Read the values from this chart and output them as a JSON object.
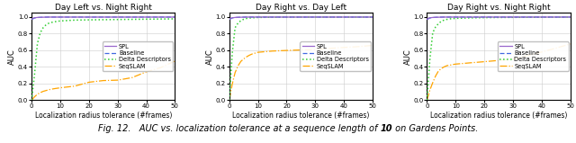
{
  "subplots": [
    {
      "title": "Day Left vs. Night Right",
      "spl": {
        "x": [
          0,
          1,
          2,
          3,
          4,
          5,
          6,
          7,
          8,
          9,
          10,
          15,
          20,
          25,
          30,
          35,
          40,
          45,
          50
        ],
        "y": [
          0.975,
          0.99,
          0.994,
          0.996,
          0.997,
          0.998,
          0.999,
          0.999,
          0.999,
          0.999,
          0.999,
          0.999,
          0.999,
          0.999,
          0.999,
          0.999,
          0.999,
          0.999,
          0.999
        ]
      },
      "baseline": {
        "x": [
          0,
          1,
          2,
          3,
          4,
          5,
          6,
          7,
          8,
          9,
          10,
          15,
          20,
          25,
          30,
          35,
          40,
          45,
          50
        ],
        "y": [
          0.97,
          0.988,
          0.993,
          0.995,
          0.997,
          0.998,
          0.999,
          0.999,
          0.999,
          0.999,
          0.999,
          0.999,
          0.999,
          0.999,
          0.999,
          0.999,
          0.999,
          0.999,
          0.999
        ]
      },
      "delta": {
        "x": [
          0,
          1,
          2,
          3,
          4,
          5,
          6,
          7,
          8,
          9,
          10,
          15,
          20,
          25,
          30,
          35,
          40,
          45,
          50
        ],
        "y": [
          0.0,
          0.31,
          0.68,
          0.81,
          0.87,
          0.905,
          0.925,
          0.935,
          0.942,
          0.948,
          0.952,
          0.962,
          0.965,
          0.967,
          0.969,
          0.971,
          0.973,
          0.975,
          0.977
        ]
      },
      "seqslam": {
        "x": [
          0,
          1,
          2,
          3,
          4,
          5,
          6,
          7,
          8,
          9,
          10,
          15,
          20,
          25,
          30,
          35,
          40,
          45,
          50
        ],
        "y": [
          0.0,
          0.04,
          0.07,
          0.09,
          0.105,
          0.115,
          0.125,
          0.132,
          0.138,
          0.143,
          0.148,
          0.168,
          0.215,
          0.235,
          0.24,
          0.27,
          0.34,
          0.39,
          0.47
        ]
      }
    },
    {
      "title": "Day Right vs. Day Left",
      "spl": {
        "x": [
          0,
          1,
          2,
          3,
          4,
          5,
          6,
          7,
          8,
          9,
          10,
          15,
          20,
          25,
          30,
          35,
          40,
          45,
          50
        ],
        "y": [
          0.975,
          0.99,
          0.994,
          0.996,
          0.997,
          0.998,
          0.999,
          0.999,
          0.999,
          0.999,
          0.999,
          0.999,
          0.999,
          0.999,
          0.999,
          0.999,
          0.999,
          0.999,
          0.999
        ]
      },
      "baseline": {
        "x": [
          0,
          1,
          2,
          3,
          4,
          5,
          6,
          7,
          8,
          9,
          10,
          15,
          20,
          25,
          30,
          35,
          40,
          45,
          50
        ],
        "y": [
          0.97,
          0.988,
          0.993,
          0.995,
          0.997,
          0.998,
          0.999,
          0.999,
          0.999,
          0.999,
          0.999,
          0.999,
          0.999,
          0.999,
          0.999,
          0.999,
          0.999,
          0.999,
          0.999
        ]
      },
      "delta": {
        "x": [
          0,
          1,
          2,
          3,
          4,
          5,
          6,
          7,
          8,
          9,
          10,
          15,
          20,
          25,
          30,
          35,
          40,
          45,
          50
        ],
        "y": [
          0.0,
          0.56,
          0.87,
          0.925,
          0.955,
          0.972,
          0.982,
          0.987,
          0.99,
          0.992,
          0.994,
          0.997,
          0.998,
          0.999,
          0.999,
          0.999,
          0.999,
          0.999,
          0.999
        ]
      },
      "seqslam": {
        "x": [
          0,
          1,
          2,
          3,
          4,
          5,
          6,
          7,
          8,
          9,
          10,
          15,
          20,
          25,
          30,
          35,
          40,
          45,
          50
        ],
        "y": [
          0.0,
          0.19,
          0.33,
          0.41,
          0.465,
          0.495,
          0.52,
          0.54,
          0.555,
          0.565,
          0.575,
          0.59,
          0.597,
          0.603,
          0.608,
          0.622,
          0.633,
          0.643,
          0.658
        ]
      }
    },
    {
      "title": "Day Right vs. Night Right",
      "spl": {
        "x": [
          0,
          1,
          2,
          3,
          4,
          5,
          6,
          7,
          8,
          9,
          10,
          15,
          20,
          25,
          30,
          35,
          40,
          45,
          50
        ],
        "y": [
          0.975,
          0.99,
          0.994,
          0.996,
          0.997,
          0.998,
          0.999,
          0.999,
          0.999,
          0.999,
          0.999,
          0.999,
          0.999,
          0.999,
          0.999,
          0.999,
          0.999,
          0.999,
          0.999
        ]
      },
      "baseline": {
        "x": [
          0,
          1,
          2,
          3,
          4,
          5,
          6,
          7,
          8,
          9,
          10,
          15,
          20,
          25,
          30,
          35,
          40,
          45,
          50
        ],
        "y": [
          0.97,
          0.988,
          0.993,
          0.995,
          0.997,
          0.998,
          0.999,
          0.999,
          0.999,
          0.999,
          0.999,
          0.999,
          0.999,
          0.999,
          0.999,
          0.999,
          0.999,
          0.999,
          0.999
        ]
      },
      "delta": {
        "x": [
          0,
          1,
          2,
          3,
          4,
          5,
          6,
          7,
          8,
          9,
          10,
          15,
          20,
          25,
          30,
          35,
          40,
          45,
          50
        ],
        "y": [
          0.0,
          0.49,
          0.81,
          0.88,
          0.92,
          0.948,
          0.963,
          0.971,
          0.977,
          0.98,
          0.983,
          0.989,
          0.992,
          0.994,
          0.995,
          0.996,
          0.997,
          0.998,
          0.999
        ]
      },
      "seqslam": {
        "x": [
          0,
          1,
          2,
          3,
          4,
          5,
          6,
          7,
          8,
          9,
          10,
          15,
          20,
          25,
          30,
          35,
          40,
          45,
          50
        ],
        "y": [
          0.0,
          0.12,
          0.21,
          0.29,
          0.35,
          0.38,
          0.4,
          0.415,
          0.42,
          0.428,
          0.433,
          0.448,
          0.462,
          0.477,
          0.491,
          0.535,
          0.578,
          0.625,
          0.675
        ]
      }
    }
  ],
  "colors": {
    "spl": "#9966CC",
    "baseline": "#4169E1",
    "delta": "#32CD32",
    "seqslam": "#FFA500"
  },
  "legend_labels": [
    "SPL",
    "Baseline",
    "Delta Descriptors",
    "SeqSLAM"
  ],
  "xlabel": "Localization radius tolerance (#frames)",
  "ylabel": "AUC",
  "caption_prefix": "Fig. 12.   AUC vs. localization tolerance at a sequence length of ",
  "caption_bold": "10",
  "caption_suffix": " on Gardens Points.",
  "xlim": [
    0,
    50
  ],
  "ylim": [
    0.0,
    1.049
  ],
  "yticks": [
    0.0,
    0.2,
    0.4,
    0.6,
    0.8,
    1.0
  ],
  "xticks": [
    0,
    10,
    20,
    30,
    40,
    50
  ],
  "title_fontsize": 6.5,
  "label_fontsize": 5.5,
  "tick_fontsize": 5.0,
  "legend_fontsize": 4.8,
  "caption_fontsize": 7.0
}
